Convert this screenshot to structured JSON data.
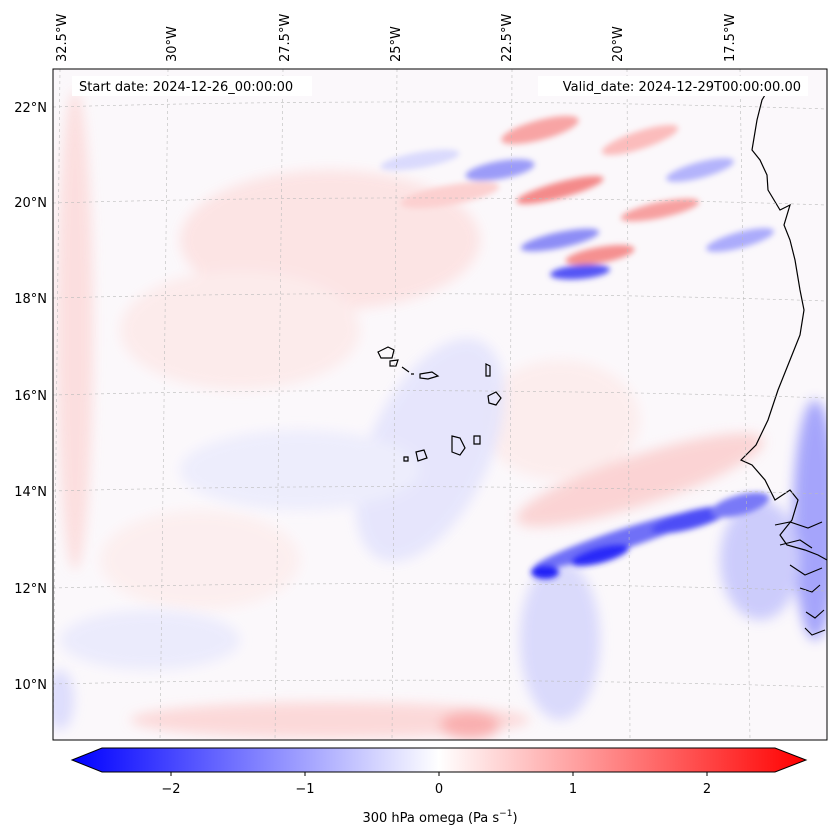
{
  "header": {
    "start_date": "Start date: 2024-12-26_00:00:00",
    "valid_date": "Valid_date: 2024-12-29T00:00:00.00"
  },
  "axes": {
    "lon_labels": [
      "32.5°W",
      "30°W",
      "27.5°W",
      "25°W",
      "22.5°W",
      "20°W",
      "17.5°W"
    ],
    "lat_labels": [
      "22°N",
      "20°N",
      "18°N",
      "16°N",
      "14°N",
      "12°N",
      "10°N"
    ]
  },
  "colorbar": {
    "label": "300 hPa omega (Pa s",
    "label_sup": "−1",
    "label_end": ")",
    "ticks": [
      "−2",
      "−1",
      "0",
      "1",
      "2"
    ],
    "tick_values": [
      -2,
      -1,
      0,
      1,
      2
    ],
    "range": [
      -2.5,
      2.5
    ],
    "colormap": "bwr",
    "neg_color": "#0000ff",
    "pos_color": "#ff0000"
  },
  "colors": {
    "coastline": "#000000",
    "gridline": "#bbbbbb"
  }
}
